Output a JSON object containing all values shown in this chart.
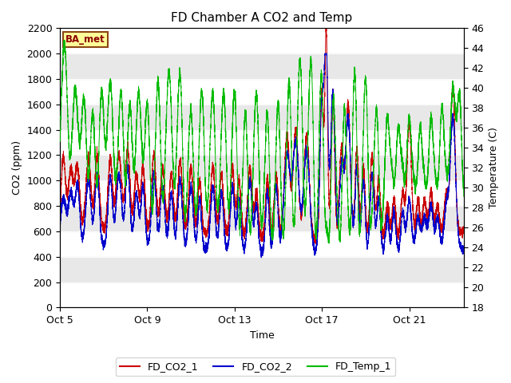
{
  "title": "FD Chamber A CO2 and Temp",
  "xlabel": "Time",
  "ylabel_left": "CO2 (ppm)",
  "ylabel_right": "Temperature (C)",
  "ylim_left": [
    0,
    2200
  ],
  "ylim_right": [
    18,
    46
  ],
  "yticks_left": [
    0,
    200,
    400,
    600,
    800,
    1000,
    1200,
    1400,
    1600,
    1800,
    2000,
    2200
  ],
  "yticks_right": [
    18,
    20,
    22,
    24,
    26,
    28,
    30,
    32,
    34,
    36,
    38,
    40,
    42,
    44,
    46
  ],
  "xtick_labels": [
    "Oct 5",
    "Oct 9",
    "Oct 13",
    "Oct 17",
    "Oct 21"
  ],
  "xtick_positions": [
    0,
    4,
    8,
    12,
    16
  ],
  "xlim": [
    0,
    18.5
  ],
  "color_co2_1": "#cc0000",
  "color_co2_2": "#0000cc",
  "color_temp": "#00bb00",
  "legend_labels": [
    "FD_CO2_1",
    "FD_CO2_2",
    "FD_Temp_1"
  ],
  "annotation_text": "BA_met",
  "annotation_color": "#8b0000",
  "annotation_bg": "#ffff99",
  "annotation_border": "#8b4513",
  "background_color": "#ffffff",
  "plot_bg_color": "#ffffff",
  "band_color": "#e8e8e8",
  "title_fontsize": 11,
  "axis_label_fontsize": 9,
  "tick_fontsize": 9
}
